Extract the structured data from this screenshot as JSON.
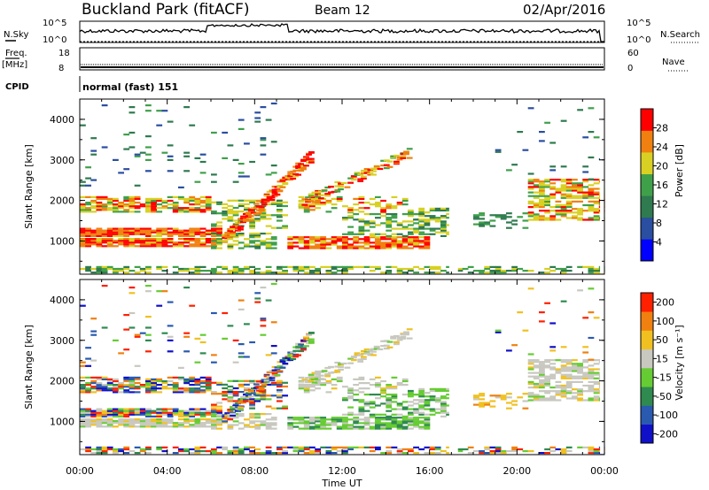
{
  "header": {
    "site": "Buckland Park (fitACF)",
    "beam": "Beam 12",
    "date": "02/Apr/2016"
  },
  "status_panels": {
    "nsky": {
      "label": "N.Sky",
      "ticks": [
        "10^5",
        "10^0"
      ]
    },
    "nsearch": {
      "label": "N.Search",
      "ticks": [
        "10^5",
        "10^0"
      ]
    },
    "freq": {
      "label1": "Freq.",
      "label2": "[MHz]",
      "ticks": [
        "18",
        "8"
      ]
    },
    "nave": {
      "label": "Nave",
      "ticks": [
        "60",
        "0"
      ]
    },
    "cpid": {
      "label": "CPID",
      "value": "normal (fast) 151"
    }
  },
  "chart_data": [
    {
      "type": "heatmap",
      "title": "",
      "xlabel": "",
      "ylabel": "Slant Range [km]",
      "x_ticks": [
        "00:00",
        "04:00",
        "08:00",
        "12:00",
        "16:00",
        "20:00",
        "00:00"
      ],
      "y_ticks": [
        1000,
        2000,
        3000,
        4000
      ],
      "ylim": [
        180,
        4500
      ],
      "xlim_hours": [
        0,
        24
      ],
      "colorbar": {
        "label": "Power [dB]",
        "ticks": [
          "28",
          "24",
          "20",
          "16",
          "12",
          "8",
          "4"
        ],
        "colors": [
          "#0000ff",
          "#2a4ea0",
          "#2f7a4f",
          "#3fa04a",
          "#d8d022",
          "#f08010",
          "#ff0000"
        ]
      }
    },
    {
      "type": "heatmap",
      "title": "",
      "xlabel": "Time UT",
      "ylabel": "Slant Range [km]",
      "x_ticks": [
        "00:00",
        "04:00",
        "08:00",
        "12:00",
        "16:00",
        "20:00",
        "00:00"
      ],
      "y_ticks": [
        1000,
        2000,
        3000,
        4000
      ],
      "ylim": [
        180,
        4500
      ],
      "xlim_hours": [
        0,
        24
      ],
      "colorbar": {
        "label": "Velocity [m s⁻¹]",
        "ticks": [
          "200",
          "100",
          "50",
          "15",
          "-15",
          "-50",
          "-100",
          "-200"
        ],
        "colors": [
          "#1010c8",
          "#2a5ab0",
          "#2f8a50",
          "#66cc33",
          "#c8c8c0",
          "#f0c020",
          "#f08010",
          "#ff2000"
        ]
      }
    }
  ]
}
